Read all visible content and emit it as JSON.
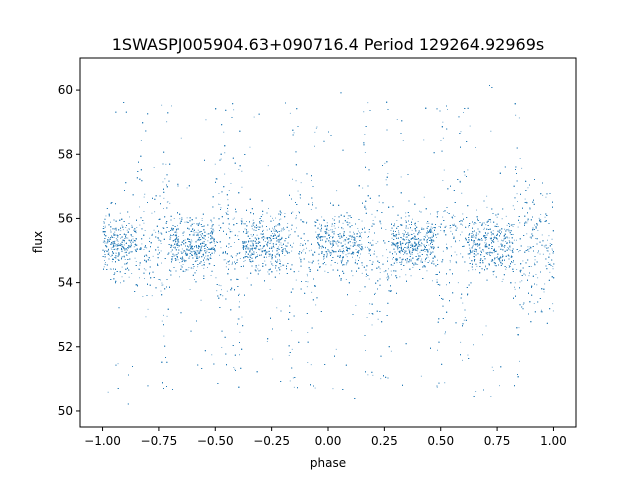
{
  "chart_data": {
    "type": "scatter",
    "title": "1SWASPJ005904.63+090716.4 Period 129264.92969s",
    "xlabel": "phase",
    "ylabel": "flux",
    "xlim": [
      -1.1,
      1.1
    ],
    "ylim": [
      49.5,
      61.0
    ],
    "xticks": [
      -1.0,
      -0.75,
      -0.5,
      -0.25,
      0.0,
      0.25,
      0.5,
      0.75,
      1.0
    ],
    "xtick_labels": [
      "−1.00",
      "−0.75",
      "−0.50",
      "−0.25",
      "0.00",
      "0.25",
      "0.50",
      "0.75",
      "1.00"
    ],
    "yticks": [
      50,
      52,
      54,
      56,
      58,
      60
    ],
    "ytick_labels": [
      "50",
      "52",
      "54",
      "56",
      "58",
      "60"
    ],
    "grid": false,
    "legend": false,
    "color": "#1f77b4",
    "series": [
      {
        "baseline_flux": 55.2,
        "baseline_scatter": 0.45,
        "phase_range": [
          -1.0,
          1.0
        ],
        "cycles_per_phase_unit": 3,
        "cycle_centers": [
          -0.95,
          -0.6,
          -0.28,
          0.05,
          0.38,
          0.72
        ],
        "approx_point_count": 24000
      }
    ]
  }
}
